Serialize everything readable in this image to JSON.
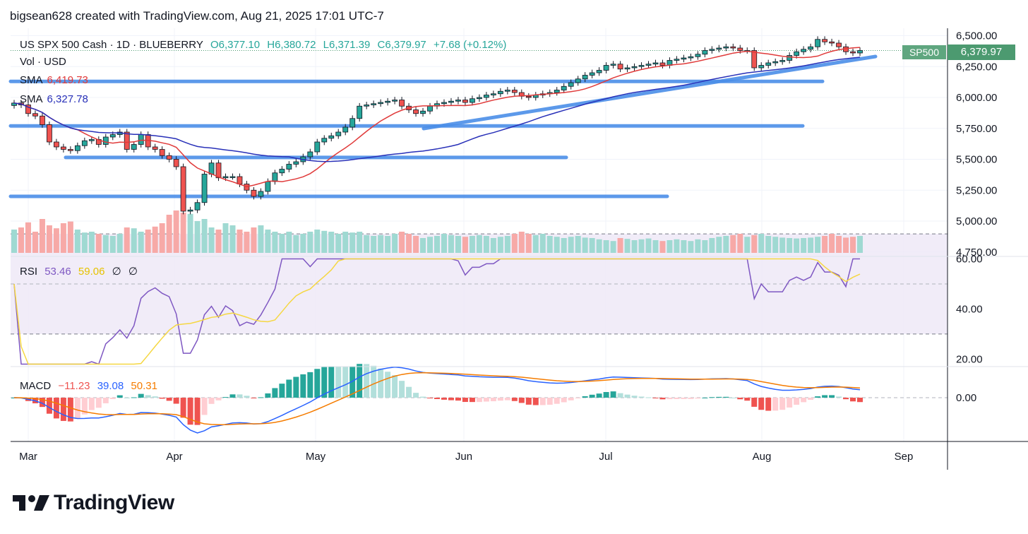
{
  "header": {
    "text": "bigsean628 created with TradingView.com, Aug 21, 2025 17:01 UTC-7"
  },
  "legend": {
    "symbol": "US SPX 500 Cash · 1D · BLUEBERRY",
    "o": "O6,377.10",
    "h": "H6,380.72",
    "l": "L6,371.39",
    "c": "C6,379.97",
    "change": "+7.68 (+0.12%)",
    "vol": "Vol · USD",
    "sma1_label": "SMA",
    "sma1_value": "6,419.73",
    "sma2_label": "SMA",
    "sma2_value": "6,327.78",
    "rsi_label": "RSI",
    "rsi_value": "53.46",
    "rsi_ma": "59.06",
    "rsi_na1": "∅",
    "rsi_na2": "∅",
    "macd_label": "MACD",
    "macd_v1": "−11.23",
    "macd_v2": "39.08",
    "macd_v3": "50.31"
  },
  "badge": {
    "name": "SP500",
    "price": "6,379.97"
  },
  "brand": {
    "name": "TradingView",
    "logo_icon": "tradingview-logo-icon"
  },
  "colors": {
    "up": "#26a69a",
    "down": "#ef5350",
    "sma_fast": "#e03a3a",
    "sma_slow": "#2830b8",
    "rsi": "#7e57c2",
    "rsi_ma": "#f5d742",
    "trendline": "#4a8ee8",
    "macd": "#2962ff",
    "signal": "#f57c00"
  },
  "chart_data": {
    "type": "candlestick",
    "x_labels": [
      "Mar",
      "Apr",
      "May",
      "Jun",
      "Jul",
      "Aug",
      "Sep"
    ],
    "price_axis": {
      "ticks": [
        "6,500.00",
        "6,250.00",
        "6,000.00",
        "5,750.00",
        "5,500.00",
        "5,250.00",
        "5,000.00",
        "4,750.00"
      ],
      "range": [
        4720,
        6560
      ]
    },
    "rsi_axis": {
      "ticks": [
        "60.00",
        "40.00",
        "20.00"
      ],
      "range": [
        17,
        61
      ],
      "bands": [
        70,
        30
      ]
    },
    "macd_axis": {
      "ticks": [
        "0.00"
      ]
    },
    "closes": [
      5955,
      5940,
      5870,
      5850,
      5780,
      5640,
      5600,
      5580,
      5570,
      5610,
      5650,
      5660,
      5620,
      5680,
      5700,
      5720,
      5580,
      5620,
      5700,
      5600,
      5580,
      5530,
      5500,
      5440,
      5080,
      5090,
      5150,
      5380,
      5470,
      5350,
      5360,
      5360,
      5300,
      5250,
      5200,
      5240,
      5320,
      5390,
      5420,
      5460,
      5480,
      5520,
      5560,
      5640,
      5670,
      5690,
      5720,
      5760,
      5830,
      5930,
      5940,
      5950,
      5960,
      5970,
      5980,
      5930,
      5900,
      5870,
      5890,
      5930,
      5950,
      5960,
      5970,
      5980,
      5960,
      5990,
      6000,
      6020,
      6030,
      6050,
      6060,
      6040,
      6010,
      6000,
      6020,
      6030,
      6040,
      6060,
      6090,
      6120,
      6150,
      6180,
      6200,
      6220,
      6260,
      6270,
      6230,
      6240,
      6250,
      6260,
      6270,
      6280,
      6260,
      6300,
      6310,
      6320,
      6330,
      6350,
      6380,
      6390,
      6400,
      6410,
      6400,
      6380,
      6380,
      6240,
      6260,
      6280,
      6290,
      6300,
      6340,
      6370,
      6390,
      6410,
      6470,
      6450,
      6440,
      6410,
      6370,
      6360,
      6380
    ],
    "volume_pct": [
      0.55,
      0.6,
      0.72,
      0.5,
      0.8,
      0.65,
      0.58,
      0.7,
      0.74,
      0.55,
      0.48,
      0.5,
      0.45,
      0.42,
      0.4,
      0.45,
      0.6,
      0.58,
      0.5,
      0.55,
      0.62,
      0.7,
      0.9,
      1.0,
      0.95,
      0.92,
      0.75,
      0.8,
      0.6,
      0.55,
      0.7,
      0.65,
      0.55,
      0.5,
      0.6,
      0.65,
      0.55,
      0.5,
      0.45,
      0.5,
      0.42,
      0.45,
      0.5,
      0.55,
      0.52,
      0.5,
      0.45,
      0.5,
      0.48,
      0.5,
      0.42,
      0.4,
      0.42,
      0.4,
      0.45,
      0.5,
      0.45,
      0.4,
      0.35,
      0.38,
      0.4,
      0.45,
      0.42,
      0.4,
      0.38,
      0.4,
      0.42,
      0.4,
      0.35,
      0.38,
      0.4,
      0.45,
      0.5,
      0.45,
      0.42,
      0.45,
      0.4,
      0.38,
      0.35,
      0.38,
      0.4,
      0.36,
      0.35,
      0.32,
      0.3,
      0.28,
      0.35,
      0.33,
      0.3,
      0.32,
      0.34,
      0.3,
      0.28,
      0.3,
      0.32,
      0.3,
      0.28,
      0.32,
      0.3,
      0.35,
      0.38,
      0.4,
      0.42,
      0.45,
      0.38,
      0.42,
      0.45,
      0.4,
      0.38,
      0.36,
      0.35,
      0.34,
      0.35,
      0.36,
      0.38,
      0.4,
      0.45,
      0.4,
      0.36,
      0.38,
      0.4
    ],
    "sma_fast_value": 6419.73,
    "sma_slow_value": 6327.78,
    "rsi_value": 53.46,
    "rsi_ma_value": 59.06,
    "macd_values": [
      -11.23,
      39.08,
      50.31
    ],
    "horizontal_lines": [
      6130,
      5770,
      5515,
      5200
    ]
  }
}
